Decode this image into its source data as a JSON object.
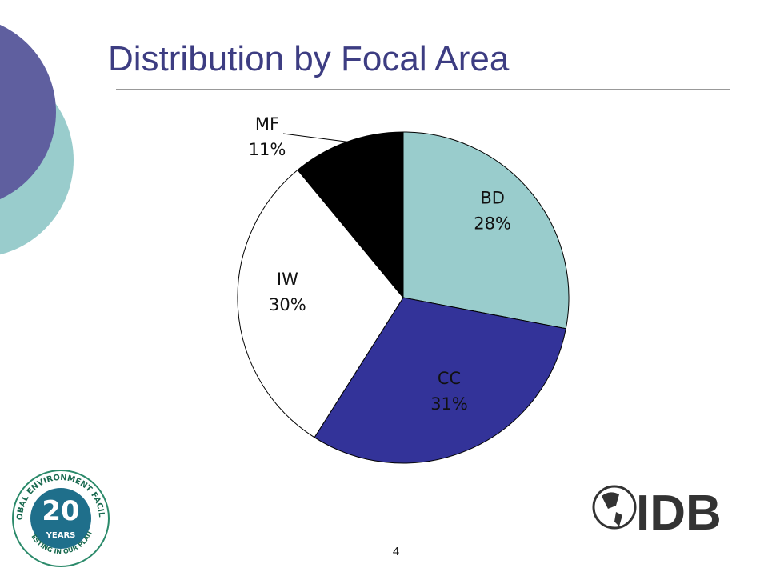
{
  "chart_data": {
    "type": "pie",
    "title": "Distribution by Focal Area",
    "categories": [
      "BD",
      "CC",
      "IW",
      "MF"
    ],
    "values": [
      28,
      31,
      30,
      11
    ],
    "value_labels": [
      "28%",
      "31%",
      "30%",
      "11%"
    ],
    "colors": [
      "#99cccc",
      "#333399",
      "#ffffff",
      "#000000"
    ]
  },
  "slide": {
    "page_number": "4",
    "gef_logo": {
      "ring": "GLOBAL ENVIRONMENT FACILITY",
      "number": "20",
      "years": "YEARS",
      "motto": "INVESTING IN OUR PLANET"
    },
    "idb_logo": "IDB"
  }
}
